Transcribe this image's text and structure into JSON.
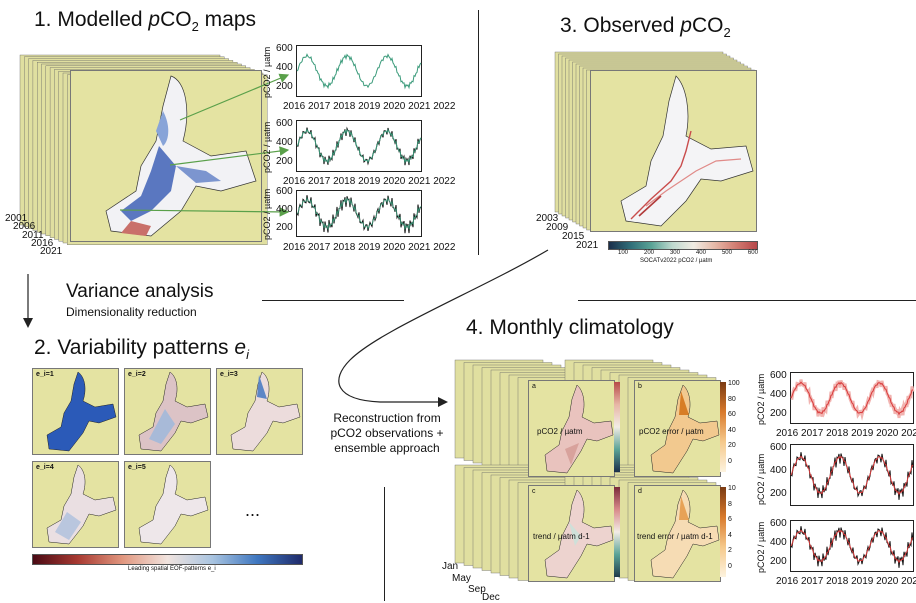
{
  "panel1": {
    "num": "1.",
    "title_a": "Modelled ",
    "title_p": "p",
    "title_b": "CO",
    "title_sub": "2",
    "title_c": " maps",
    "years": [
      "2001",
      "2006",
      "2011",
      "2016",
      "2021"
    ],
    "ts_xticks": [
      "2016",
      "2017",
      "2018",
      "2019",
      "2020",
      "2021",
      "2022"
    ],
    "ts_ylabel": "pCO2 / µatm",
    "ts_yticks": [
      [
        "600",
        "400",
        "200"
      ],
      [
        "600",
        "400",
        "200"
      ],
      [
        "600",
        "400",
        "200"
      ]
    ]
  },
  "panel3": {
    "num": "3.",
    "title_a": "Observed ",
    "title_p": "p",
    "title_b": "CO",
    "title_sub": "2",
    "years": [
      "2003",
      "2009",
      "2015",
      "2021"
    ],
    "cb_ticks": [
      "100",
      "200",
      "300",
      "400",
      "500",
      "600"
    ],
    "cb_label": "SOCATv2022 pCO2 / µatm"
  },
  "arrow_left": {
    "label": "Variance analysis",
    "sublabel": "Dimensionality reduction"
  },
  "panel2": {
    "num": "2.",
    "title_a": "Variability patterns ",
    "title_e": "e",
    "title_sub": "i",
    "patterns": [
      "e_i=1",
      "e_i=2",
      "e_i=3",
      "e_i=4",
      "e_i=5"
    ],
    "ellipsis": "...",
    "cb_label": "Leading spatial EOF-patterns e_i"
  },
  "reconstruction": {
    "line1": "Reconstruction from",
    "line2": "pCO2 observations +",
    "line3": "ensemble approach"
  },
  "panel4": {
    "num": "4.",
    "title": "Monthly climatology",
    "months": [
      "Jan",
      "May",
      "Sep",
      "Dec"
    ],
    "maps": [
      {
        "letter": "a",
        "label": "pCO2 / µatm",
        "cb": [
          "600",
          "400",
          "200"
        ]
      },
      {
        "letter": "b",
        "label": "pCO2 error / µatm",
        "cb": [
          "100",
          "80",
          "60",
          "40",
          "20",
          "0"
        ]
      },
      {
        "letter": "c",
        "label": "trend / µatm d-1",
        "cb": []
      },
      {
        "letter": "d",
        "label": "trend error / µatm d-1",
        "cb": [
          "10",
          "8",
          "6",
          "4",
          "2",
          "0"
        ]
      }
    ],
    "ts_xticks": [
      "2016",
      "2017",
      "2018",
      "2019",
      "2020",
      "2021",
      "2022"
    ],
    "ts_ylabel": "pCO2 / µatm",
    "ts_yticks": [
      [
        "600",
        "400",
        "200"
      ],
      [
        "600",
        "400",
        "200"
      ],
      [
        "600",
        "400",
        "200"
      ]
    ]
  },
  "colors": {
    "land": "#e4e3a2",
    "model_line": "#3a9a7a",
    "obs_line": "#111111",
    "clim_line": "#d83a3a",
    "arrow_green": "#5aa04a"
  }
}
